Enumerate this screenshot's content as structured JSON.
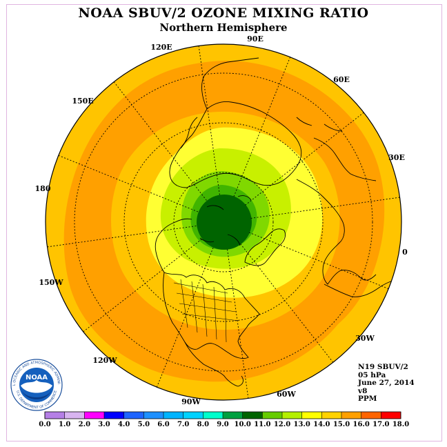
{
  "title": "NOAA SBUV/2 OZONE MIXING RATIO",
  "subtitle": "Northern Hemisphere",
  "lon_labels": [
    "90E",
    "60E",
    "30E",
    "0",
    "30W",
    "60W",
    "90W",
    "120W",
    "150W",
    "180",
    "150E",
    "120E"
  ],
  "info": {
    "instrument": "N19 SBUV/2",
    "level": "05 hPa",
    "date": "June 27, 2014",
    "version": "v8",
    "units": "PPM"
  },
  "logo": {
    "text": "NOAA",
    "ring_top": "NATIONAL OCEANIC AND ATMOSPHERIC ADMINISTRATION",
    "ring_bottom": "U.S. DEPARTMENT OF COMMERCE"
  },
  "colorbar": {
    "ticks": [
      "0.0",
      "1.0",
      "2.0",
      "3.0",
      "4.0",
      "5.0",
      "6.0",
      "7.0",
      "8.0",
      "9.0",
      "10.0",
      "11.0",
      "12.0",
      "13.0",
      "14.0",
      "15.0",
      "16.0",
      "17.0",
      "18.0"
    ],
    "colors": [
      "#b57fe6",
      "#d8b4f0",
      "#ff00ff",
      "#0000ff",
      "#1e64ff",
      "#1e90ff",
      "#00b4ff",
      "#00d2ff",
      "#00ffcc",
      "#00a040",
      "#006400",
      "#66cc00",
      "#b4f000",
      "#ffff00",
      "#ffd200",
      "#ffa000",
      "#ff6400",
      "#ff0000",
      "#8b5a2b"
    ]
  },
  "field_colors": {
    "outer": "#ffc400",
    "orange_band": "#ffa000",
    "light_yellow": "#ffff33",
    "yellow_green": "#c8f000",
    "light_green": "#80d800",
    "dark_green": "#006400"
  }
}
